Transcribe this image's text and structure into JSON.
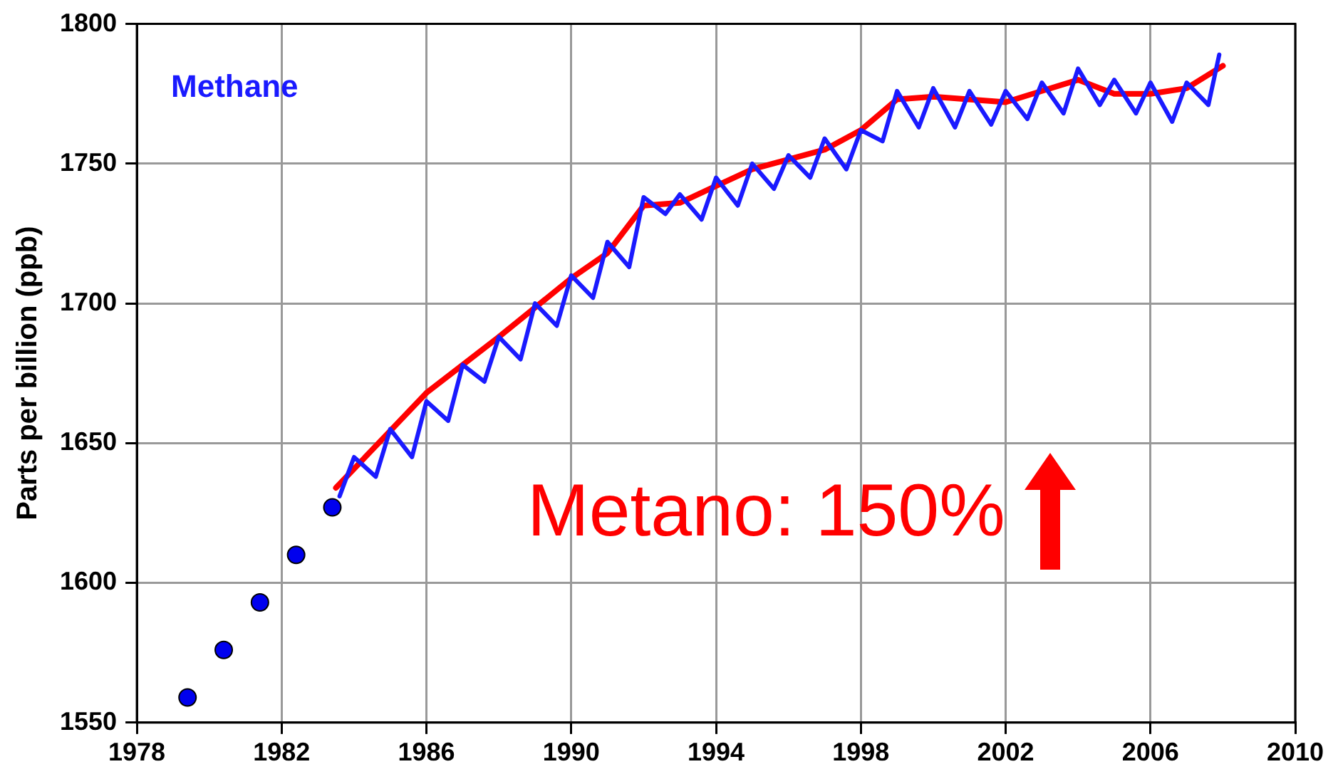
{
  "chart_data": {
    "type": "line",
    "ylabel": "Parts per billion (ppb)",
    "xlim": [
      1978,
      2010
    ],
    "xticks": [
      1978,
      1982,
      1986,
      1990,
      1994,
      1998,
      2002,
      2006,
      2010
    ],
    "ylim": [
      1550,
      1800
    ],
    "yticks": [
      1550,
      1600,
      1650,
      1700,
      1750,
      1800
    ],
    "grid": true,
    "legend": false,
    "annotations": [
      "Metano: 150%"
    ],
    "series": [
      {
        "type": "scatter",
        "marker": "circle",
        "color": "#0000ee",
        "x": [
          1979.4,
          1980.4,
          1981.4,
          1982.4,
          1983.4
        ],
        "values": [
          1559,
          1576,
          1593,
          1610,
          1627
        ]
      },
      {
        "name": "Methane",
        "marker": "none",
        "color": "#1a1aff",
        "x": [
          1983.6,
          1984.0,
          1984.6,
          1985.0,
          1985.6,
          1986.0,
          1986.6,
          1987.0,
          1987.6,
          1988.0,
          1988.6,
          1989.0,
          1989.6,
          1990.0,
          1990.6,
          1991.0,
          1991.6,
          1992.0,
          1992.6,
          1993.0,
          1993.6,
          1994.0,
          1994.6,
          1995.0,
          1995.6,
          1996.0,
          1996.6,
          1997.0,
          1997.6,
          1998.0,
          1998.6,
          1999.0,
          1999.6,
          2000.0,
          2000.6,
          2001.0,
          2001.6,
          2002.0,
          2002.6,
          2003.0,
          2003.6,
          2004.0,
          2004.6,
          2005.0,
          2005.6,
          2006.0,
          2006.6,
          2007.0,
          2007.6,
          2007.9
        ],
        "values": [
          1631,
          1645,
          1638,
          1655,
          1645,
          1665,
          1658,
          1678,
          1672,
          1688,
          1680,
          1700,
          1692,
          1710,
          1702,
          1722,
          1713,
          1738,
          1732,
          1739,
          1730,
          1745,
          1735,
          1750,
          1741,
          1753,
          1745,
          1759,
          1748,
          1762,
          1758,
          1776,
          1763,
          1777,
          1763,
          1776,
          1764,
          1776,
          1766,
          1779,
          1768,
          1784,
          1771,
          1780,
          1768,
          1779,
          1765,
          1779,
          1771,
          1789
        ]
      },
      {
        "marker": "none",
        "color": "#ff0000",
        "x": [
          1983.5,
          1986,
          1988,
          1990,
          1991,
          1992,
          1993,
          1994,
          1995,
          1997,
          1998,
          1999,
          2000,
          2002,
          2003,
          2004,
          2005,
          2006,
          2007,
          2008
        ],
        "values": [
          1634,
          1668,
          1688,
          1709,
          1718,
          1735,
          1736,
          1742,
          1748,
          1755,
          1762,
          1773,
          1774,
          1772,
          1776,
          1780,
          1775,
          1775,
          1777,
          1785
        ]
      }
    ]
  }
}
